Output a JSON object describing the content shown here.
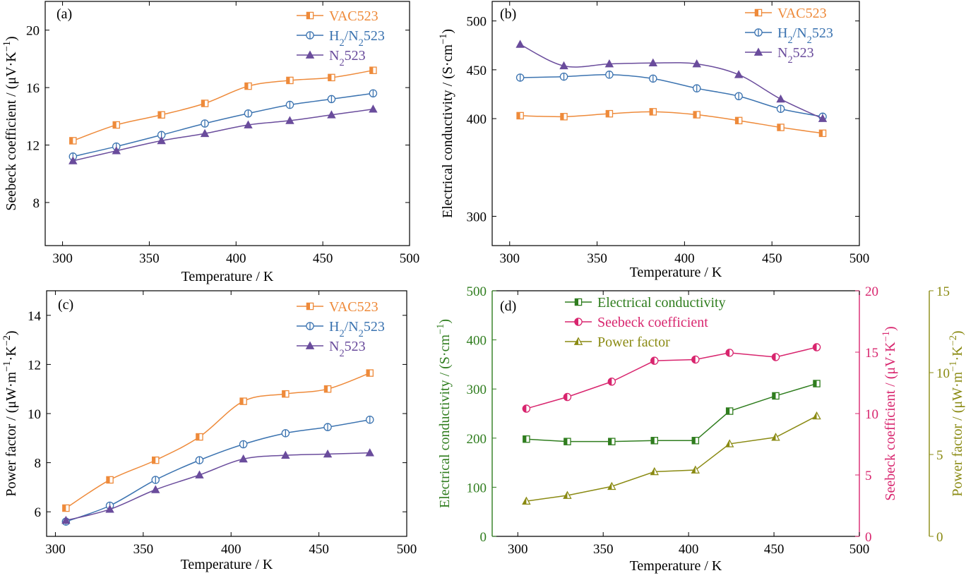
{
  "chart_data": [
    {
      "id": "a",
      "type": "line",
      "panel_label": "(a)",
      "xlabel": "Temperature / K",
      "ylabel": "Seebeck coefficient / (μV·K⁻¹)",
      "xlim": [
        290,
        500
      ],
      "ylim": [
        5,
        22
      ],
      "xticks": [
        300,
        350,
        400,
        450,
        500
      ],
      "yticks": [
        8,
        12,
        16,
        20
      ],
      "legend_position": "top-right",
      "series": [
        {
          "name": "VAC523",
          "color": "#ee8a3a",
          "marker": "square",
          "x": [
            306,
            331,
            357,
            382,
            407,
            431,
            455,
            479
          ],
          "y": [
            12.3,
            13.4,
            14.1,
            14.9,
            16.1,
            16.5,
            16.7,
            17.2
          ]
        },
        {
          "name": "H₂/N₂523",
          "color": "#3b73b0",
          "marker": "circle",
          "x": [
            306,
            331,
            357,
            382,
            407,
            431,
            455,
            479
          ],
          "y": [
            11.2,
            11.9,
            12.7,
            13.5,
            14.2,
            14.8,
            15.2,
            15.6
          ]
        },
        {
          "name": "N₂523",
          "color": "#6a4c9c",
          "marker": "triangle",
          "x": [
            306,
            331,
            357,
            382,
            407,
            431,
            455,
            479
          ],
          "y": [
            10.9,
            11.6,
            12.3,
            12.8,
            13.4,
            13.7,
            14.1,
            14.5
          ]
        }
      ]
    },
    {
      "id": "b",
      "type": "line",
      "panel_label": "(b)",
      "xlabel": "Temperature / K",
      "ylabel": "Electrical conductivity / (S·cm⁻¹)",
      "xlim": [
        290,
        500
      ],
      "ylim": [
        270,
        520
      ],
      "xticks": [
        300,
        350,
        400,
        450,
        500
      ],
      "yticks": [
        300,
        400,
        450,
        500
      ],
      "legend_position": "top-right",
      "series": [
        {
          "name": "VAC523",
          "color": "#ee8a3a",
          "marker": "square",
          "x": [
            306,
            331,
            357,
            382,
            407,
            431,
            455,
            479
          ],
          "y": [
            403,
            402,
            405,
            407,
            404,
            398,
            391,
            385
          ]
        },
        {
          "name": "H₂/N₂523",
          "color": "#3b73b0",
          "marker": "circle",
          "x": [
            306,
            331,
            357,
            382,
            407,
            431,
            455,
            479
          ],
          "y": [
            442,
            443,
            445,
            441,
            431,
            423,
            410,
            402
          ]
        },
        {
          "name": "N₂523",
          "color": "#6a4c9c",
          "marker": "triangle",
          "x": [
            306,
            331,
            357,
            382,
            407,
            431,
            455,
            479
          ],
          "y": [
            476,
            454,
            456,
            457,
            456,
            445,
            420,
            400
          ]
        }
      ]
    },
    {
      "id": "c",
      "type": "line",
      "panel_label": "(c)",
      "xlabel": "Temperature / K",
      "ylabel": "Power factor / (μW·m⁻¹·K⁻²)",
      "xlim": [
        295,
        500
      ],
      "ylim": [
        5,
        15
      ],
      "xticks": [
        300,
        350,
        400,
        450,
        500
      ],
      "yticks": [
        6,
        8,
        10,
        12,
        14
      ],
      "legend_position": "top-right",
      "series": [
        {
          "name": "VAC523",
          "color": "#ee8a3a",
          "marker": "square",
          "x": [
            306,
            331,
            357,
            382,
            407,
            431,
            455,
            479
          ],
          "y": [
            6.15,
            7.3,
            8.1,
            9.05,
            10.5,
            10.8,
            11.0,
            11.65
          ]
        },
        {
          "name": "H₂/N₂523",
          "color": "#3b73b0",
          "marker": "circle",
          "x": [
            306,
            331,
            357,
            382,
            407,
            431,
            455,
            479
          ],
          "y": [
            5.6,
            6.25,
            7.3,
            8.1,
            8.75,
            9.2,
            9.45,
            9.75
          ]
        },
        {
          "name": "N₂523",
          "color": "#6a4c9c",
          "marker": "triangle",
          "x": [
            306,
            331,
            357,
            382,
            407,
            431,
            455,
            479
          ],
          "y": [
            5.65,
            6.1,
            6.9,
            7.5,
            8.15,
            8.3,
            8.35,
            8.4
          ]
        }
      ]
    },
    {
      "id": "d",
      "type": "line",
      "panel_label": "(d)",
      "xlabel": "Temperature / K",
      "ylabel": "Electrical conductivity / (S·cm⁻¹)",
      "ylabel_right": "Seebeck coefficient / (μV·K⁻¹)",
      "ylabel_right2": "Power factor / (μW·m⁻¹·K⁻²)",
      "xlim": [
        285,
        500
      ],
      "ylim": [
        0,
        500
      ],
      "ylim_right": [
        0,
        20
      ],
      "ylim_right2": [
        0,
        15
      ],
      "xticks": [
        300,
        350,
        400,
        450,
        500
      ],
      "yticks": [
        0,
        100,
        200,
        300,
        400,
        500
      ],
      "yticks_right": [
        0,
        5,
        10,
        15,
        20
      ],
      "yticks_right2": [
        0,
        5,
        10,
        15
      ],
      "axis_colors": {
        "left": "#2f7d1e",
        "right": "#d8256e",
        "right2": "#8a8a12"
      },
      "legend_position": "top-left",
      "series": [
        {
          "name": "Electrical conductivity",
          "color": "#2f7d1e",
          "marker": "square-half",
          "axis": "left",
          "x": [
            305,
            329,
            355,
            380,
            404,
            424,
            451,
            475
          ],
          "y": [
            198,
            193,
            193,
            195,
            195,
            255,
            286,
            311
          ]
        },
        {
          "name": "Seebeck coefficient",
          "color": "#d8256e",
          "marker": "circle-half",
          "axis": "right",
          "x": [
            305,
            329,
            355,
            380,
            404,
            424,
            451,
            475
          ],
          "y": [
            10.4,
            11.35,
            12.6,
            14.3,
            14.4,
            14.95,
            14.6,
            15.4
          ]
        },
        {
          "name": "Power factor",
          "color": "#8a8a12",
          "marker": "triangle-half",
          "axis": "right2",
          "x": [
            305,
            329,
            355,
            380,
            404,
            424,
            451,
            475
          ],
          "y": [
            2.15,
            2.5,
            3.05,
            3.95,
            4.05,
            5.65,
            6.05,
            7.35
          ]
        }
      ]
    }
  ]
}
